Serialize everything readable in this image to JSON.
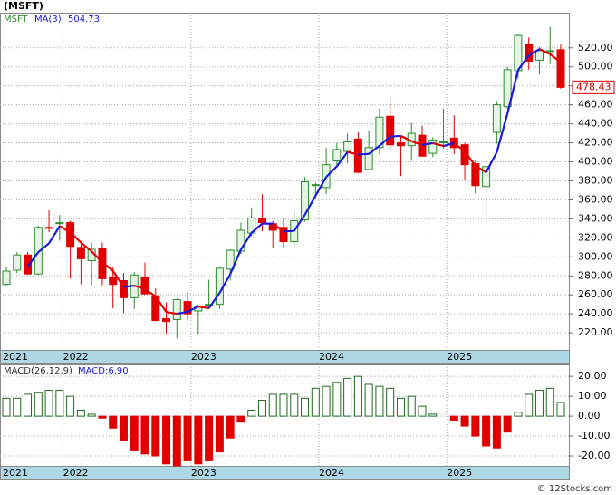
{
  "chart_data": [
    {
      "type": "candlestick",
      "title": "(MSFT)",
      "categories": [
        "2021",
        null,
        null,
        null,
        null,
        null,
        "2022",
        null,
        null,
        null,
        null,
        null,
        null,
        null,
        null,
        null,
        null,
        null,
        "2023",
        null,
        null,
        null,
        null,
        null,
        null,
        null,
        null,
        null,
        null,
        null,
        "2024",
        null,
        null,
        null,
        null,
        null,
        null,
        null,
        null,
        null,
        null,
        null,
        "2025",
        null,
        null,
        null,
        null,
        null,
        null,
        null,
        null,
        null,
        null
      ],
      "series": [
        {
          "name": "MSFT",
          "color": "#2e8b2e",
          "down_color": "#e00000",
          "open": [
            271,
            286,
            302,
            282,
            331,
            335,
            336,
            310,
            296,
            309,
            278,
            275,
            257,
            278,
            259,
            235,
            234,
            253,
            243,
            249,
            250,
            287,
            306,
            325,
            340,
            335,
            331,
            316,
            339,
            376,
            373,
            401,
            411,
            424,
            392,
            415,
            448,
            420,
            417,
            428,
            409,
            420,
            425,
            418,
            398,
            374,
            431,
            458,
            496,
            524,
            507,
            516,
            518
          ],
          "high": [
            290,
            305,
            305,
            333,
            349,
            344,
            338,
            315,
            315,
            315,
            290,
            283,
            284,
            294,
            267,
            252,
            256,
            263,
            250,
            276,
            289,
            308,
            336,
            352,
            366,
            338,
            340,
            347,
            384,
            378,
            415,
            420,
            430,
            431,
            433,
            456,
            468,
            427,
            441,
            438,
            426,
            456,
            449,
            420,
            402,
            395,
            464,
            500,
            535,
            531,
            521,
            542,
            524
          ],
          "low": [
            269,
            283,
            281,
            281,
            326,
            317,
            277,
            271,
            270,
            270,
            246,
            241,
            245,
            260,
            232,
            219,
            214,
            233,
            219,
            245,
            245,
            275,
            303,
            322,
            327,
            309,
            309,
            311,
            337,
            362,
            366,
            397,
            399,
            388,
            394,
            408,
            411,
            385,
            401,
            405,
            405,
            414,
            408,
            381,
            367,
            344,
            419,
            456,
            488,
            497,
            492,
            503,
            477
          ],
          "close": [
            285,
            302,
            282,
            331,
            330,
            336,
            311,
            298,
            308,
            277,
            271,
            257,
            281,
            261,
            233,
            232,
            255,
            240,
            248,
            250,
            288,
            307,
            328,
            341,
            336,
            328,
            316,
            338,
            379,
            376,
            397,
            413,
            421,
            389,
            415,
            447,
            418,
            417,
            430,
            406,
            423,
            421,
            415,
            397,
            375,
            395,
            460,
            497,
            533,
            506,
            517,
            517,
            478.43
          ]
        },
        {
          "name": "MA(3)",
          "color": "#1a1adc",
          "down_color": "#e00000",
          "values": [
            null,
            null,
            289.7,
            305,
            314.3,
            332.3,
            325.7,
            315,
            305.7,
            294.3,
            285.3,
            268.3,
            269.7,
            266.3,
            258.3,
            242,
            240,
            242.3,
            247.7,
            246,
            262,
            281.7,
            307.7,
            325.3,
            335,
            335,
            326.7,
            327.3,
            344.3,
            364.3,
            384,
            395.3,
            410.3,
            407.7,
            408.3,
            417,
            426.7,
            427.3,
            421.7,
            417.7,
            419.7,
            416.7,
            419.7,
            411,
            395.7,
            389,
            410,
            450.7,
            496.7,
            512,
            518.7,
            513.3,
            504.73
          ]
        }
      ],
      "ylim": [
        202,
        557
      ],
      "yticks": [
        {
          "value": 220,
          "label": "220.00"
        },
        {
          "value": 240,
          "label": "240.00"
        },
        {
          "value": 260,
          "label": "260.00"
        },
        {
          "value": 280,
          "label": "280.00"
        },
        {
          "value": 300,
          "label": "300.00"
        },
        {
          "value": 320,
          "label": "320.00"
        },
        {
          "value": 340,
          "label": "340.00"
        },
        {
          "value": 360,
          "label": "360.00"
        },
        {
          "value": 380,
          "label": "380.00"
        },
        {
          "value": 400,
          "label": "400.00"
        },
        {
          "value": 420,
          "label": "420.00"
        },
        {
          "value": 440,
          "label": "440.00"
        },
        {
          "value": 460,
          "label": "460.00"
        },
        {
          "value": 480,
          "label": "480.00"
        },
        {
          "value": 500,
          "label": "500.00"
        },
        {
          "value": 520,
          "label": "520.00"
        }
      ],
      "grid": true
    },
    {
      "type": "bar",
      "title": "MACD(26,12,9)",
      "last_label": "MACD:6.90",
      "positive_color": "#1f6b1f",
      "negative_color": "#e00000",
      "values": [
        9,
        9,
        11,
        12,
        13,
        13,
        10,
        3,
        1,
        -1,
        -6,
        -12,
        -17,
        -19,
        -20,
        -24,
        -25,
        -22,
        -24,
        -22,
        -18,
        -11,
        -3,
        3,
        8,
        11,
        11,
        11,
        9,
        14,
        15,
        17,
        19,
        20,
        16,
        15,
        14,
        9,
        10,
        5,
        1,
        0,
        -2,
        -5,
        -10,
        -15,
        -16,
        -8,
        2,
        11,
        13,
        14,
        6.9
      ],
      "ylim": [
        -25,
        26
      ],
      "yticks": [
        {
          "value": 20,
          "label": "20.00"
        },
        {
          "value": 10,
          "label": "10.00"
        },
        {
          "value": 0,
          "label": "0.00"
        },
        {
          "value": -10,
          "label": "-10.00"
        },
        {
          "value": -20,
          "label": "-20.00"
        }
      ],
      "grid": true
    },
    {
      "type": "footer",
      "title": "© 12Stocks.com"
    }
  ]
}
